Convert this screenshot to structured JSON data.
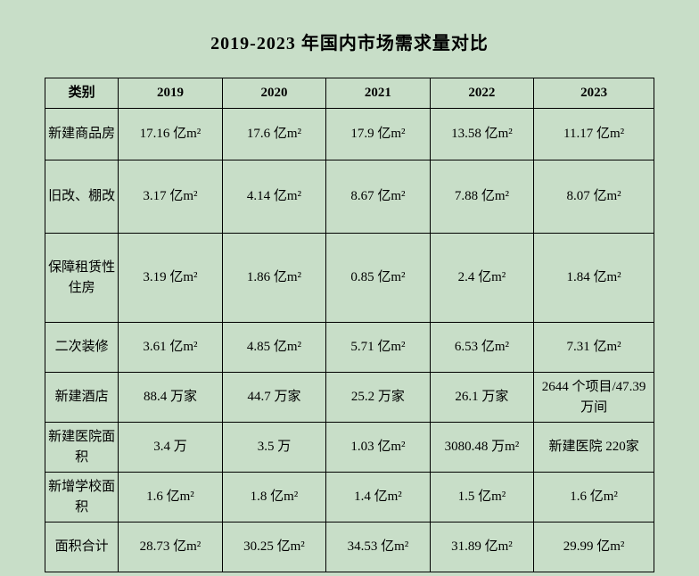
{
  "background_color": "#c8dec8",
  "border_color": "#000000",
  "text_color": "#000000",
  "title": "2019-2023 年国内市场需求量对比",
  "table": {
    "columns": [
      "类别",
      "2019",
      "2020",
      "2021",
      "2022",
      "2023"
    ],
    "rows": [
      {
        "cat": "新建商品房",
        "cells": [
          "17.16 亿m²",
          "17.6 亿m²",
          "17.9 亿m²",
          "13.58 亿m²",
          "11.17 亿m²"
        ],
        "row_class": "h-1"
      },
      {
        "cat": "旧改、棚改",
        "cells": [
          "3.17 亿m²",
          "4.14 亿m²",
          "8.67 亿m²",
          "7.88 亿m²",
          "8.07 亿m²"
        ],
        "row_class": "h-2"
      },
      {
        "cat": "保障租赁性住房",
        "cells": [
          "3.19 亿m²",
          "1.86 亿m²",
          "0.85 亿m²",
          "2.4 亿m²",
          "1.84 亿m²"
        ],
        "row_class": "h-3"
      },
      {
        "cat": "二次装修",
        "cells": [
          "3.61 亿m²",
          "4.85 亿m²",
          "5.71 亿m²",
          "6.53 亿m²",
          "7.31 亿m²"
        ],
        "row_class": "h-s"
      },
      {
        "cat": "新建酒店",
        "cells": [
          "88.4 万家",
          "44.7 万家",
          "25.2 万家",
          "26.1 万家",
          "2644 个项目/47.39 万间"
        ],
        "row_class": "h-s"
      },
      {
        "cat": "新建医院面积",
        "cells": [
          "3.4 万",
          "3.5 万",
          "1.03 亿m²",
          "3080.48 万m²",
          "新建医院 220家"
        ],
        "row_class": "h-s"
      },
      {
        "cat": "新增学校面积",
        "cells": [
          "1.6 亿m²",
          "1.8 亿m²",
          "1.4 亿m²",
          "1.5 亿m²",
          "1.6 亿m²"
        ],
        "row_class": "h-s"
      },
      {
        "cat": "面积合计",
        "cells": [
          "28.73 亿m²",
          "30.25 亿m²",
          "34.53 亿m²",
          "31.89 亿m²",
          "29.99 亿m²"
        ],
        "row_class": "h-s"
      }
    ]
  }
}
